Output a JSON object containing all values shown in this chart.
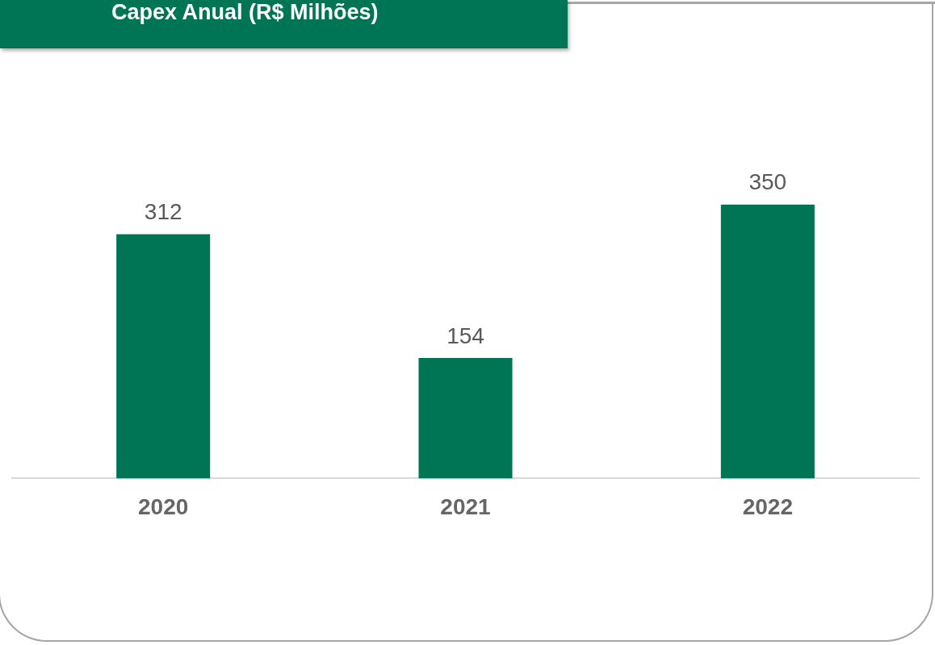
{
  "chart_data": {
    "type": "bar",
    "title": "Capex Anual (R$ Milhões)",
    "categories": [
      "2020",
      "2021",
      "2022"
    ],
    "values": [
      312,
      154,
      350
    ],
    "color": "#007555",
    "data_labels": true
  }
}
